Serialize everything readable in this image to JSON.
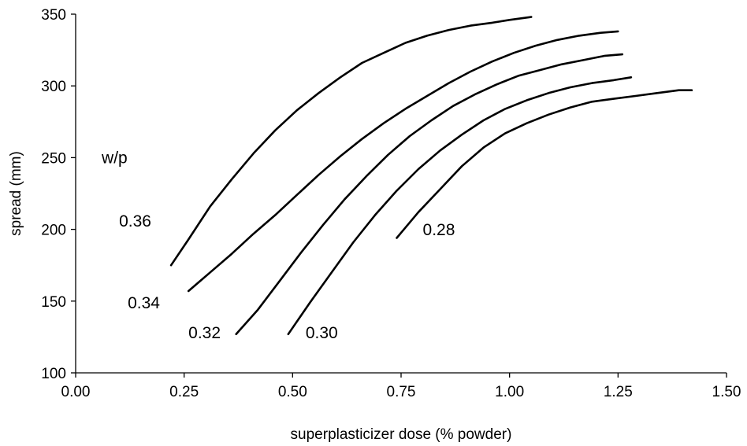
{
  "chart_data": {
    "type": "line",
    "title": "",
    "xlabel": "superplasticizer dose (% powder)",
    "ylabel": "spread (mm)",
    "xlim": [
      0,
      1.5
    ],
    "ylim": [
      100,
      350
    ],
    "x_ticks": [
      0,
      0.25,
      0.5,
      0.75,
      1.0,
      1.25,
      1.5
    ],
    "x_tick_labels": [
      "0.00",
      "0.25",
      "0.50",
      "0.75",
      "1.00",
      "1.25",
      "1.50"
    ],
    "y_ticks": [
      100,
      150,
      200,
      250,
      300,
      350
    ],
    "y_tick_labels": [
      "100",
      "150",
      "200",
      "250",
      "300",
      "350"
    ],
    "grid": false,
    "legend_title": "w/p",
    "series": [
      {
        "name": "0.36",
        "x": [
          0.22,
          0.26,
          0.31,
          0.36,
          0.41,
          0.46,
          0.51,
          0.56,
          0.61,
          0.66,
          0.71,
          0.76,
          0.81,
          0.86,
          0.91,
          0.96,
          1.0,
          1.05
        ],
        "y": [
          175,
          193,
          216,
          235,
          253,
          269,
          283,
          295,
          306,
          316,
          323,
          330,
          335,
          339,
          342,
          344,
          346,
          348
        ]
      },
      {
        "name": "0.34",
        "x": [
          0.26,
          0.31,
          0.36,
          0.41,
          0.46,
          0.51,
          0.56,
          0.61,
          0.66,
          0.71,
          0.76,
          0.81,
          0.86,
          0.91,
          0.96,
          1.01,
          1.06,
          1.11,
          1.16,
          1.21,
          1.25
        ],
        "y": [
          157,
          170,
          183,
          197,
          210,
          224,
          238,
          251,
          263,
          274,
          284,
          293,
          302,
          310,
          317,
          323,
          328,
          332,
          335,
          337,
          338
        ]
      },
      {
        "name": "0.32",
        "x": [
          0.37,
          0.42,
          0.47,
          0.52,
          0.57,
          0.62,
          0.67,
          0.72,
          0.77,
          0.82,
          0.87,
          0.92,
          0.97,
          1.02,
          1.07,
          1.12,
          1.17,
          1.22,
          1.26
        ],
        "y": [
          127,
          144,
          164,
          184,
          203,
          221,
          237,
          252,
          265,
          276,
          286,
          294,
          301,
          307,
          311,
          315,
          318,
          321,
          322
        ]
      },
      {
        "name": "0.30",
        "x": [
          0.49,
          0.54,
          0.59,
          0.64,
          0.69,
          0.74,
          0.79,
          0.84,
          0.89,
          0.94,
          0.99,
          1.04,
          1.09,
          1.14,
          1.19,
          1.24,
          1.28
        ],
        "y": [
          127,
          149,
          170,
          191,
          210,
          227,
          242,
          255,
          266,
          276,
          284,
          290,
          295,
          299,
          302,
          304,
          306
        ]
      },
      {
        "name": "0.28",
        "x": [
          0.74,
          0.79,
          0.84,
          0.89,
          0.94,
          0.99,
          1.04,
          1.09,
          1.14,
          1.19,
          1.24,
          1.29,
          1.34,
          1.39,
          1.42
        ],
        "y": [
          194,
          212,
          228,
          244,
          257,
          267,
          274,
          280,
          285,
          289,
          291,
          293,
          295,
          297,
          297
        ]
      }
    ],
    "annotations": [
      {
        "text": "w/p",
        "x": 0.06,
        "y": 246
      },
      {
        "text": "0.36",
        "x": 0.1,
        "y": 202
      },
      {
        "text": "0.34",
        "x": 0.12,
        "y": 145
      },
      {
        "text": "0.32",
        "x": 0.26,
        "y": 124
      },
      {
        "text": "0.30",
        "x": 0.53,
        "y": 124
      },
      {
        "text": "0.28",
        "x": 0.8,
        "y": 196
      }
    ]
  }
}
